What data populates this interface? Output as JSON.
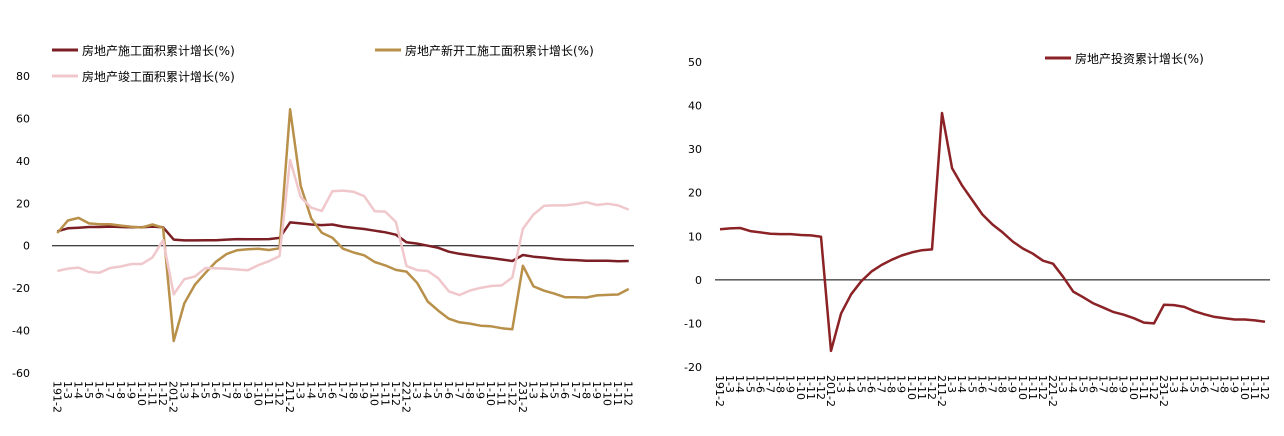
{
  "chart_data": [
    {
      "type": "line",
      "categories": [
        "191-2",
        "1-3",
        "1-4",
        "1-5",
        "1-6",
        "1-7",
        "1-8",
        "1-9",
        "1-10",
        "1-11",
        "1-12",
        "201-2",
        "1-3",
        "1-4",
        "1-5",
        "1-6",
        "1-7",
        "1-8",
        "1-9",
        "1-10",
        "1-11",
        "1-12",
        "211-2",
        "1-3",
        "1-4",
        "1-5",
        "1-6",
        "1-7",
        "1-8",
        "1-9",
        "1-10",
        "1-11",
        "1-12",
        "221-2",
        "1-3",
        "1-4",
        "1-5",
        "1-6",
        "1-7",
        "1-8",
        "1-9",
        "1-10",
        "1-11",
        "1-12",
        "231-2",
        "1-3",
        "1-4",
        "1-5",
        "1-6",
        "1-7",
        "1-8",
        "1-9",
        "1-10",
        "1-11",
        "1-12"
      ],
      "series": [
        {
          "name": "房地产施工面积累计增长(%)",
          "color": "#7b1f24",
          "values": [
            6.8,
            8.2,
            8.5,
            8.8,
            8.8,
            9.0,
            8.8,
            8.7,
            8.7,
            9.0,
            8.7,
            2.9,
            2.5,
            2.5,
            2.6,
            2.6,
            2.9,
            3.1,
            3.0,
            3.0,
            3.1,
            3.7,
            11.0,
            10.5,
            10.0,
            9.7,
            10.0,
            9.0,
            8.4,
            7.9,
            7.1,
            6.3,
            5.2,
            1.6,
            1.0,
            0.0,
            -1.0,
            -2.8,
            -3.8,
            -4.5,
            -5.2,
            -5.8,
            -6.5,
            -7.2,
            -4.4,
            -5.2,
            -5.6,
            -6.2,
            -6.6,
            -6.8,
            -7.1,
            -7.1,
            -7.1,
            -7.3,
            -7.2
          ]
        },
        {
          "name": "房地产新开工施工面积累计增长(%)",
          "color": "#b8904a",
          "values": [
            6.0,
            11.9,
            13.1,
            10.5,
            10.1,
            10.1,
            9.5,
            8.9,
            8.6,
            10.0,
            8.5,
            -44.9,
            -27.2,
            -18.4,
            -12.8,
            -7.6,
            -3.9,
            -2.1,
            -1.7,
            -1.4,
            -2.0,
            -1.2,
            64.3,
            28.2,
            12.8,
            6.1,
            3.8,
            -1.4,
            -3.2,
            -4.5,
            -7.7,
            -9.3,
            -11.4,
            -12.2,
            -17.5,
            -26.3,
            -30.6,
            -34.4,
            -36.1,
            -36.7,
            -37.7,
            -38.0,
            -38.9,
            -39.4,
            -9.4,
            -19.2,
            -21.2,
            -22.6,
            -24.3,
            -24.3,
            -24.4,
            -23.4,
            -23.2,
            -23.0,
            -20.4
          ]
        },
        {
          "name": "房地产竣工面积累计增长(%)",
          "color": "#f0c8cc",
          "values": [
            -11.9,
            -10.8,
            -10.3,
            -12.4,
            -12.7,
            -10.5,
            -9.8,
            -8.6,
            -8.6,
            -5.5,
            2.6,
            -22.9,
            -15.8,
            -14.5,
            -10.5,
            -10.6,
            -10.8,
            -11.2,
            -11.6,
            -9.2,
            -7.3,
            -4.9,
            40.4,
            22.9,
            17.9,
            16.4,
            25.7,
            26.0,
            25.4,
            23.4,
            16.2,
            16.1,
            11.2,
            -9.6,
            -11.5,
            -11.9,
            -15.3,
            -21.5,
            -23.3,
            -21.1,
            -19.9,
            -19.0,
            -18.7,
            -15.0,
            8.0,
            14.7,
            18.8,
            19.0,
            19.0,
            19.6,
            20.5,
            19.2,
            19.8,
            19.0,
            17.0
          ]
        }
      ],
      "ylim": [
        -60,
        80
      ],
      "yticks": [
        -60,
        -40,
        -20,
        0,
        20,
        40,
        60,
        80
      ]
    },
    {
      "type": "line",
      "categories": [
        "191-2",
        "1-3",
        "1-4",
        "1-5",
        "1-6",
        "1-7",
        "1-8",
        "1-9",
        "1-10",
        "1-11",
        "1-12",
        "201-2",
        "1-3",
        "1-4",
        "1-5",
        "1-6",
        "1-7",
        "1-8",
        "1-9",
        "1-10",
        "1-11",
        "1-12",
        "211-2",
        "1-3",
        "1-4",
        "1-5",
        "1-6",
        "1-7",
        "1-8",
        "1-9",
        "1-10",
        "1-11",
        "1-12",
        "221-2",
        "1-3",
        "1-4",
        "1-5",
        "1-6",
        "1-7",
        "1-8",
        "1-9",
        "1-10",
        "1-11",
        "1-12",
        "231-2",
        "1-3",
        "1-4",
        "1-5",
        "1-6",
        "1-7",
        "1-8",
        "1-9",
        "1-10",
        "1-11",
        "1-12"
      ],
      "series": [
        {
          "name": "房地产投资累计增长(%)",
          "color": "#8b2226",
          "values": [
            11.6,
            11.8,
            11.9,
            11.2,
            10.9,
            10.6,
            10.5,
            10.5,
            10.3,
            10.2,
            9.9,
            -16.3,
            -7.7,
            -3.3,
            -0.3,
            1.9,
            3.4,
            4.6,
            5.6,
            6.3,
            6.8,
            7.0,
            38.3,
            25.6,
            21.6,
            18.3,
            15.0,
            12.7,
            10.9,
            8.8,
            7.2,
            6.0,
            4.4,
            3.7,
            0.7,
            -2.7,
            -4.0,
            -5.4,
            -6.4,
            -7.4,
            -8.0,
            -8.8,
            -9.8,
            -10.0,
            -5.7,
            -5.8,
            -6.2,
            -7.2,
            -7.9,
            -8.5,
            -8.8,
            -9.1,
            -9.1,
            -9.3,
            -9.6
          ]
        }
      ],
      "ylim": [
        -20,
        50
      ],
      "yticks": [
        -20,
        -10,
        0,
        10,
        20,
        30,
        40,
        50
      ]
    }
  ]
}
